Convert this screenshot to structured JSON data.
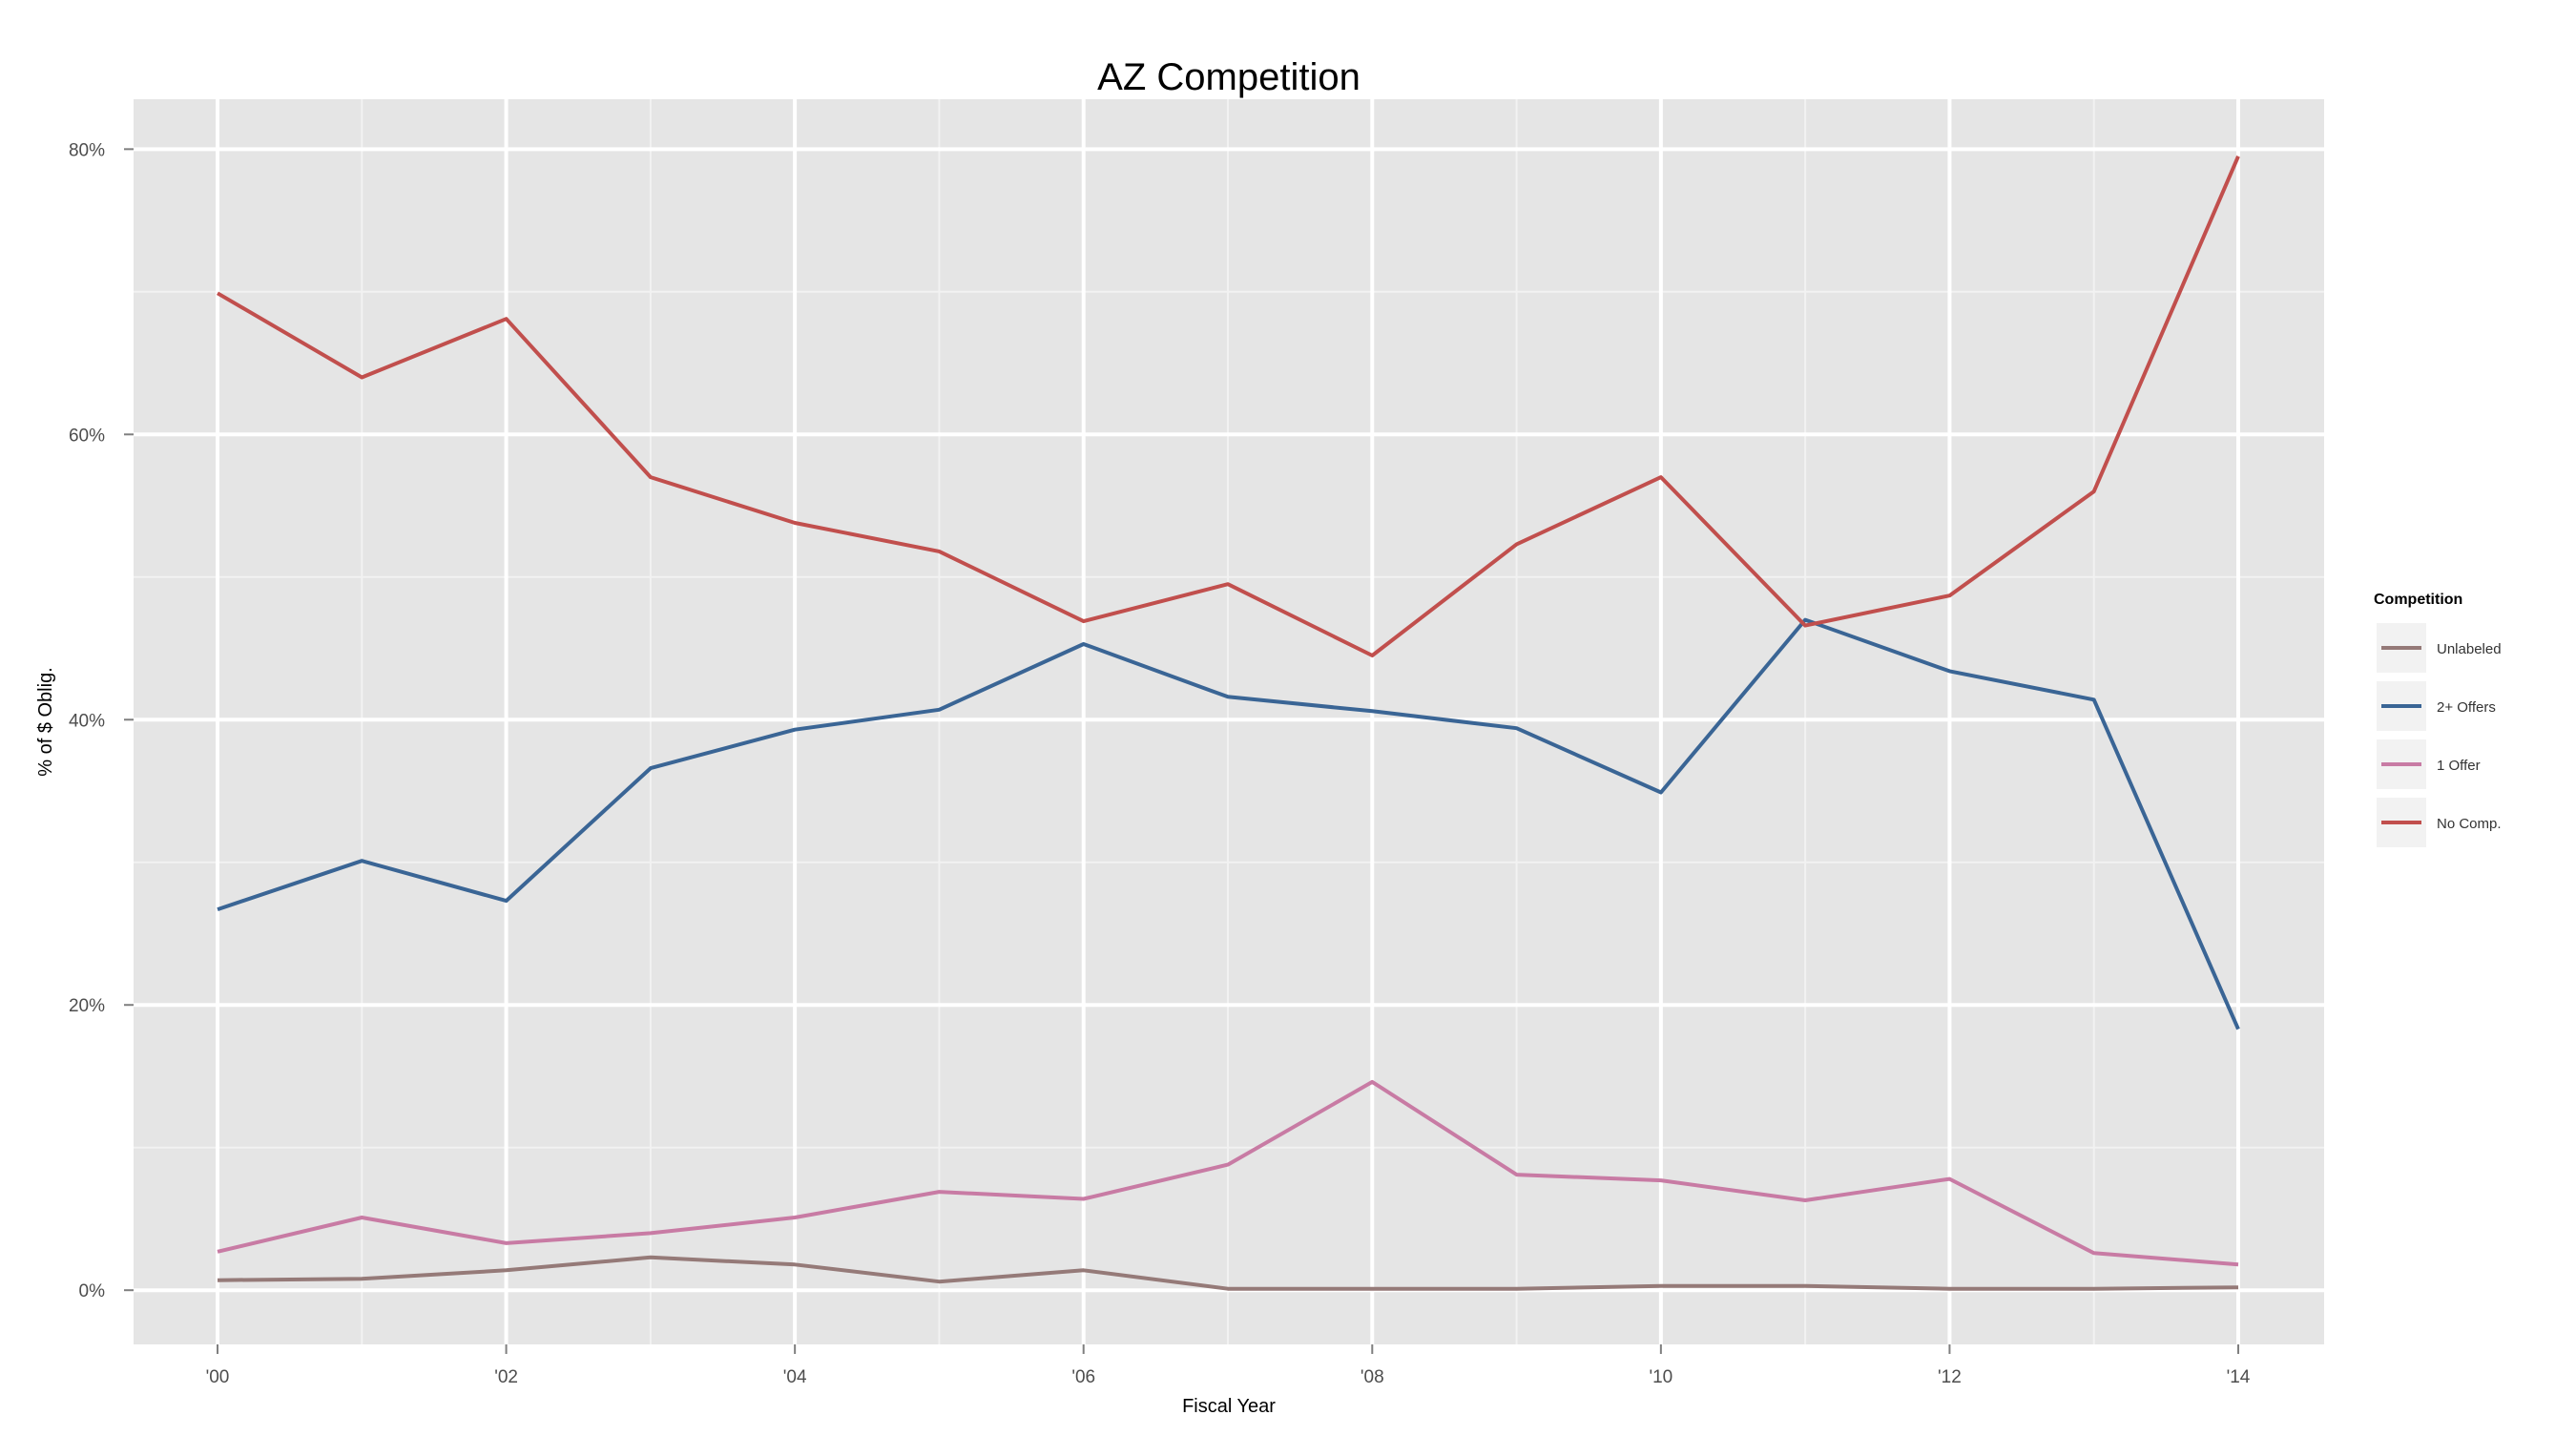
{
  "chart_data": {
    "type": "line",
    "title": "AZ Competition",
    "xlabel": "Fiscal Year",
    "ylabel": "% of $ Oblig.",
    "x": [
      "'00",
      "'01",
      "'02",
      "'03",
      "'04",
      "'05",
      "'06",
      "'07",
      "'08",
      "'09",
      "'10",
      "'11",
      "'12",
      "'13",
      "'14"
    ],
    "x_tick_labels": [
      "'00",
      "'02",
      "'04",
      "'06",
      "'08",
      "'10",
      "'12",
      "'14"
    ],
    "y_tick_labels": [
      "0%",
      "20%",
      "40%",
      "60%",
      "80%"
    ],
    "y_ticks": [
      0,
      20,
      40,
      60,
      80
    ],
    "ylim": [
      -3.8,
      83.5
    ],
    "grid": true,
    "legend": {
      "title": "Competition",
      "position": "right"
    },
    "series": [
      {
        "name": "Unlabeled",
        "color": "#957A78",
        "values": [
          0.7,
          0.8,
          1.4,
          2.3,
          1.8,
          0.6,
          1.4,
          0.1,
          0.1,
          0.1,
          0.3,
          0.3,
          0.1,
          0.1,
          0.2
        ]
      },
      {
        "name": "2+ Offers",
        "color": "#3A6595",
        "values": [
          26.7,
          30.1,
          27.3,
          36.6,
          39.3,
          40.7,
          45.3,
          41.6,
          40.6,
          39.4,
          34.9,
          47.0,
          43.4,
          41.4,
          18.3
        ]
      },
      {
        "name": "1 Offer",
        "color": "#C87BA4",
        "values": [
          2.7,
          5.1,
          3.3,
          4.0,
          5.1,
          6.9,
          6.4,
          8.8,
          14.6,
          8.1,
          7.7,
          6.3,
          7.8,
          2.6,
          1.8
        ]
      },
      {
        "name": "No Comp.",
        "color": "#C14F4D",
        "values": [
          69.9,
          64.0,
          68.1,
          57.0,
          53.8,
          51.8,
          46.9,
          49.5,
          44.5,
          52.3,
          57.0,
          46.6,
          48.7,
          56.0,
          79.5
        ]
      }
    ]
  }
}
